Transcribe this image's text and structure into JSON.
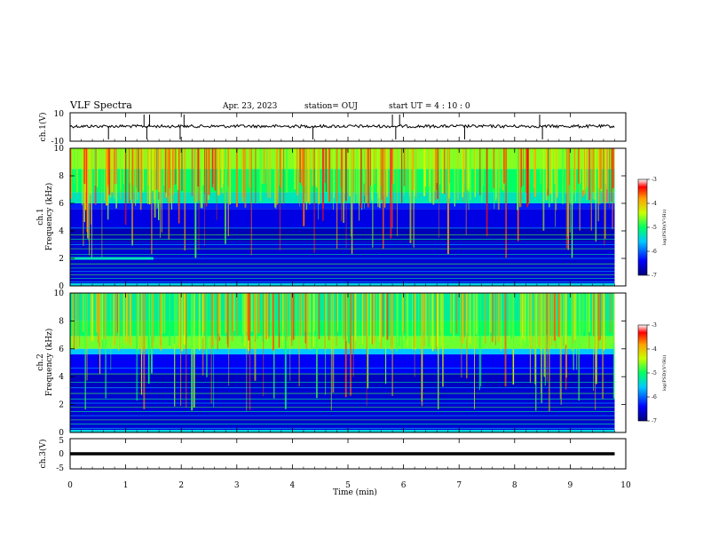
{
  "header": {
    "title": "VLF Spectra",
    "date": "Apr. 23, 2023",
    "station": "station= OUJ",
    "start": "start  UT =   4 : 10 : 0"
  },
  "chart_data": [
    {
      "type": "line",
      "name": "ch1-waveform",
      "ylabel": "ch.1(V)",
      "ylim": [
        -10,
        10
      ],
      "yticklabels": [
        "10",
        "-10"
      ],
      "baseline": 0.5,
      "spikes_min": [
        0.69,
        1.33,
        1.38,
        1.43,
        1.98,
        2.05,
        4.37,
        5.8,
        5.86,
        5.93,
        7.1,
        8.45,
        8.5
      ]
    },
    {
      "type": "heatmap",
      "name": "ch1-spectrogram",
      "ylabel": "ch.1\nFrequency (kHz)",
      "xlim": [
        0,
        10
      ],
      "ylim": [
        0,
        10
      ],
      "yticks": [
        0,
        2,
        4,
        6,
        8,
        10
      ],
      "colorbar": {
        "range": [
          -7,
          -3
        ],
        "ticks": [
          "-3",
          "-4",
          "-5",
          "-6",
          "-7"
        ],
        "label": "log(PSD)(V²/Hz)"
      }
    },
    {
      "type": "heatmap",
      "name": "ch2-spectrogram",
      "ylabel": "ch.2\nFrequency (kHz)",
      "xlim": [
        0,
        10
      ],
      "ylim": [
        0,
        10
      ],
      "yticks": [
        0,
        2,
        4,
        6,
        8,
        10
      ],
      "colorbar": {
        "range": [
          -7,
          -3
        ],
        "ticks": [
          "-3",
          "-4",
          "-5",
          "-6",
          "-7"
        ],
        "label": "log(PSD)(V²/Hz)"
      }
    },
    {
      "type": "line",
      "name": "ch3-waveform",
      "ylabel": "ch.3(V)",
      "ylim": [
        -5,
        5
      ],
      "yticklabels": [
        "5",
        "0",
        "-5"
      ],
      "baseline": 0
    }
  ],
  "xaxis": {
    "label": "Time (min)",
    "xlim": [
      0,
      10
    ],
    "ticks": [
      "0",
      "1",
      "2",
      "3",
      "4",
      "5",
      "6",
      "7",
      "8",
      "9",
      "10"
    ],
    "data_end": 9.8
  }
}
